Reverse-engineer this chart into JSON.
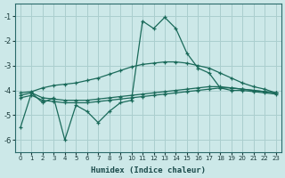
{
  "xlabel": "Humidex (Indice chaleur)",
  "x": [
    0,
    1,
    2,
    3,
    4,
    5,
    6,
    7,
    8,
    9,
    10,
    11,
    12,
    13,
    14,
    15,
    16,
    17,
    18,
    19,
    20,
    21,
    22,
    23
  ],
  "line1": [
    -4.2,
    -4.1,
    -4.3,
    -4.35,
    -4.4,
    -4.4,
    -4.4,
    -4.35,
    -4.3,
    -4.25,
    -4.2,
    -4.15,
    -4.1,
    -4.05,
    -4.0,
    -3.95,
    -3.9,
    -3.85,
    -3.85,
    -3.9,
    -3.95,
    -4.0,
    -4.05,
    -4.1
  ],
  "line2": [
    -4.3,
    -4.2,
    -4.4,
    -4.45,
    -4.5,
    -4.5,
    -4.5,
    -4.45,
    -4.4,
    -4.35,
    -4.3,
    -4.25,
    -4.2,
    -4.15,
    -4.1,
    -4.05,
    -4.0,
    -3.95,
    -3.9,
    -3.9,
    -3.95,
    -4.0,
    -4.05,
    -4.1
  ],
  "line3": [
    -4.1,
    -4.05,
    -3.9,
    -3.8,
    -3.75,
    -3.7,
    -3.6,
    -3.5,
    -3.35,
    -3.2,
    -3.05,
    -2.95,
    -2.9,
    -2.85,
    -2.85,
    -2.9,
    -3.0,
    -3.1,
    -3.3,
    -3.5,
    -3.7,
    -3.85,
    -3.95,
    -4.1
  ],
  "line4": [
    -5.5,
    -4.1,
    -4.5,
    -4.3,
    -6.0,
    -4.6,
    -4.85,
    -5.3,
    -4.85,
    -4.5,
    -4.4,
    -1.2,
    -1.5,
    -1.05,
    -1.5,
    -2.5,
    -3.1,
    -3.3,
    -3.9,
    -4.0,
    -4.0,
    -4.05,
    -4.1,
    -4.15
  ],
  "bg_color": "#cce8e8",
  "grid_color": "#aacece",
  "line_color": "#1a6a5a",
  "ylim": [
    -6.5,
    -0.5
  ],
  "xlim": [
    -0.5,
    23.5
  ]
}
